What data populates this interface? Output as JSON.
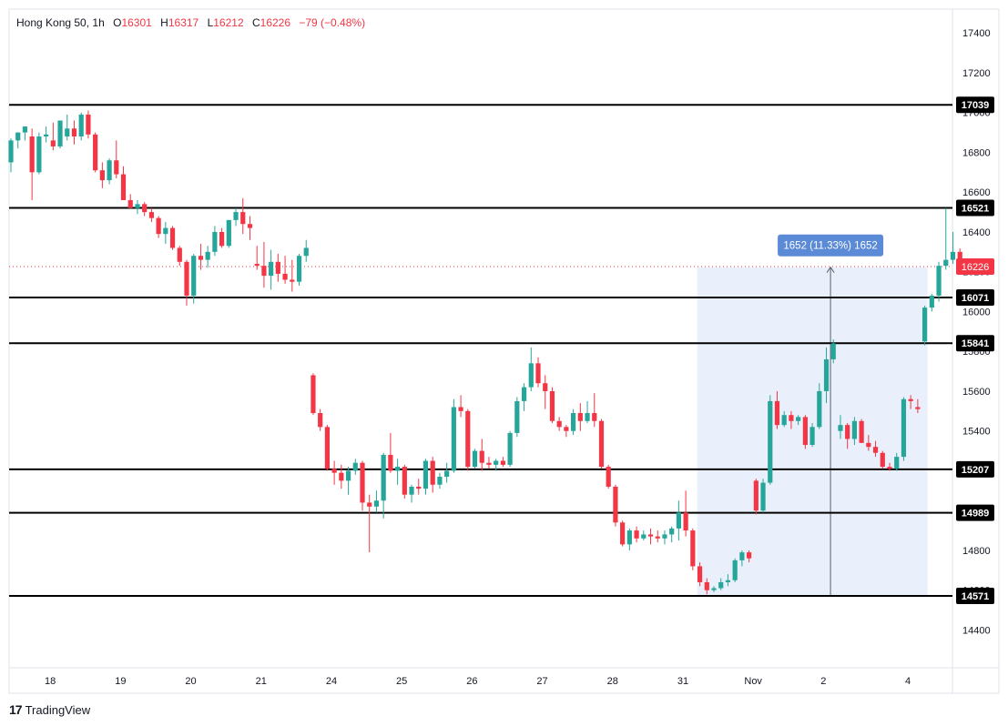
{
  "legend": {
    "symbol": "Hong Kong 50",
    "interval": "1h",
    "open_label": "O",
    "open": "16301",
    "high_label": "H",
    "high": "16317",
    "low_label": "L",
    "low": "16212",
    "close_label": "C",
    "close": "16226",
    "change": "−79 (−0.48%)"
  },
  "brand": {
    "logo": "17",
    "name": "TradingView"
  },
  "colors": {
    "up": "#26a69a",
    "down": "#f23645",
    "measure_fill": "#e8eefb",
    "measure_label": "#5b8ad6"
  },
  "chart_data": {
    "type": "candlestick",
    "title": "",
    "ylim": [
      14210,
      17520
    ],
    "y_ticks": [
      14400,
      14600,
      14800,
      15000,
      15200,
      15400,
      15600,
      15800,
      16000,
      16200,
      16400,
      16600,
      16800,
      17000,
      17200,
      17400
    ],
    "x_ticks": [
      {
        "label": "18",
        "i": 3
      },
      {
        "label": "19",
        "i": 13
      },
      {
        "label": "20",
        "i": 23
      },
      {
        "label": "21",
        "i": 33
      },
      {
        "label": "24",
        "i": 43
      },
      {
        "label": "25",
        "i": 53
      },
      {
        "label": "26",
        "i": 63
      },
      {
        "label": "27",
        "i": 73
      },
      {
        "label": "28",
        "i": 83
      },
      {
        "label": "31",
        "i": 93
      },
      {
        "label": "Nov",
        "i": 103
      },
      {
        "label": "2",
        "i": 113
      },
      {
        "label": "4",
        "i": 125
      }
    ],
    "price_levels": [
      17039,
      16521,
      16071,
      15841,
      15207,
      14989,
      14571
    ],
    "last_price": 16226,
    "measure": {
      "from_i": 98,
      "to_i": 130,
      "low": 14571,
      "high": 16223,
      "label": "1652 (11.33%) 1652"
    },
    "gaps": [
      {
        "after_i": 42,
        "i": 43
      }
    ],
    "candles": [
      [
        16750,
        16870,
        16700,
        16860
      ],
      [
        16860,
        16900,
        16820,
        16900
      ],
      [
        16900,
        16920,
        16860,
        16930
      ],
      [
        16880,
        16920,
        16560,
        16700
      ],
      [
        16700,
        16900,
        16690,
        16880
      ],
      [
        16880,
        16930,
        16850,
        16890
      ],
      [
        16860,
        16950,
        16810,
        16830
      ],
      [
        16830,
        16950,
        16820,
        16960
      ],
      [
        16880,
        16990,
        16860,
        16920
      ],
      [
        16920,
        16960,
        16840,
        16880
      ],
      [
        16880,
        17000,
        16860,
        16990
      ],
      [
        16990,
        17010,
        16870,
        16890
      ],
      [
        16890,
        16900,
        16700,
        16710
      ],
      [
        16710,
        16750,
        16620,
        16660
      ],
      [
        16660,
        16770,
        16640,
        16760
      ],
      [
        16760,
        16860,
        16670,
        16690
      ],
      [
        16690,
        16730,
        16560,
        16560
      ],
      [
        16560,
        16590,
        16520,
        16520
      ],
      [
        16520,
        16560,
        16490,
        16540
      ],
      [
        16540,
        16550,
        16480,
        16500
      ],
      [
        16500,
        16520,
        16450,
        16470
      ],
      [
        16470,
        16480,
        16370,
        16390
      ],
      [
        16390,
        16450,
        16340,
        16420
      ],
      [
        16420,
        16430,
        16310,
        16320
      ],
      [
        16320,
        16330,
        16230,
        16250
      ],
      [
        16250,
        16260,
        16030,
        16080
      ],
      [
        16080,
        16290,
        16040,
        16280
      ],
      [
        16280,
        16340,
        16210,
        16260
      ],
      [
        16260,
        16330,
        16220,
        16300
      ],
      [
        16300,
        16430,
        16280,
        16400
      ],
      [
        16400,
        16420,
        16320,
        16330
      ],
      [
        16330,
        16460,
        16320,
        16460
      ],
      [
        16460,
        16520,
        16430,
        16500
      ],
      [
        16500,
        16570,
        16390,
        16440
      ],
      [
        16440,
        16480,
        16360,
        16420
      ],
      [
        16240,
        16330,
        16210,
        16230
      ],
      [
        16230,
        16350,
        16120,
        16180
      ],
      [
        16180,
        16310,
        16110,
        16250
      ],
      [
        16250,
        16290,
        16150,
        16190
      ],
      [
        16190,
        16280,
        16140,
        16160
      ],
      [
        16160,
        16260,
        16100,
        16150
      ],
      [
        16150,
        16290,
        16130,
        16280
      ],
      [
        16280,
        16360,
        16250,
        16320
      ],
      [
        15680,
        15690,
        15480,
        15490
      ],
      [
        15490,
        15510,
        15400,
        15420
      ],
      [
        15420,
        15430,
        15200,
        15210
      ],
      [
        15210,
        15250,
        15130,
        15190
      ],
      [
        15190,
        15230,
        15110,
        15150
      ],
      [
        15150,
        15220,
        15080,
        15200
      ],
      [
        15200,
        15260,
        15180,
        15240
      ],
      [
        15240,
        15250,
        15000,
        15040
      ],
      [
        15040,
        15080,
        14790,
        15020
      ],
      [
        15020,
        15100,
        14990,
        15050
      ],
      [
        15050,
        15290,
        14960,
        15280
      ],
      [
        15280,
        15390,
        15190,
        15200
      ],
      [
        15200,
        15260,
        15130,
        15220
      ],
      [
        15220,
        15230,
        15060,
        15080
      ],
      [
        15080,
        15130,
        15040,
        15120
      ],
      [
        15120,
        15160,
        15080,
        15110
      ],
      [
        15110,
        15260,
        15080,
        15250
      ],
      [
        15250,
        15270,
        15090,
        15130
      ],
      [
        15130,
        15190,
        15110,
        15170
      ],
      [
        15170,
        15240,
        15140,
        15200
      ],
      [
        15200,
        15560,
        15190,
        15520
      ],
      [
        15520,
        15580,
        15470,
        15500
      ],
      [
        15500,
        15510,
        15200,
        15220
      ],
      [
        15220,
        15310,
        15210,
        15300
      ],
      [
        15300,
        15360,
        15200,
        15240
      ],
      [
        15240,
        15270,
        15210,
        15230
      ],
      [
        15230,
        15260,
        15200,
        15250
      ],
      [
        15250,
        15270,
        15220,
        15230
      ],
      [
        15230,
        15400,
        15220,
        15390
      ],
      [
        15390,
        15570,
        15370,
        15550
      ],
      [
        15550,
        15640,
        15500,
        15620
      ],
      [
        15620,
        15820,
        15600,
        15740
      ],
      [
        15740,
        15770,
        15620,
        15640
      ],
      [
        15640,
        15680,
        15510,
        15600
      ],
      [
        15600,
        15620,
        15440,
        15450
      ],
      [
        15450,
        15470,
        15400,
        15420
      ],
      [
        15420,
        15430,
        15370,
        15400
      ],
      [
        15400,
        15510,
        15380,
        15490
      ],
      [
        15490,
        15540,
        15400,
        15450
      ],
      [
        15450,
        15550,
        15440,
        15490
      ],
      [
        15490,
        15590,
        15420,
        15450
      ],
      [
        15450,
        15460,
        15210,
        15220
      ],
      [
        15220,
        15230,
        15110,
        15120
      ],
      [
        15120,
        15130,
        14920,
        14940
      ],
      [
        14940,
        14950,
        14820,
        14830
      ],
      [
        14830,
        14910,
        14800,
        14900
      ],
      [
        14900,
        14920,
        14840,
        14860
      ],
      [
        14860,
        14900,
        14850,
        14880
      ],
      [
        14880,
        14910,
        14830,
        14870
      ],
      [
        14870,
        14900,
        14840,
        14860
      ],
      [
        14860,
        14900,
        14830,
        14880
      ],
      [
        14880,
        14920,
        14840,
        14910
      ],
      [
        14910,
        15050,
        14850,
        14990
      ],
      [
        14990,
        15100,
        14870,
        14900
      ],
      [
        14900,
        14910,
        14700,
        14720
      ],
      [
        14720,
        14740,
        14620,
        14640
      ],
      [
        14640,
        14660,
        14580,
        14600
      ],
      [
        14600,
        14620,
        14590,
        14610
      ],
      [
        14610,
        14660,
        14600,
        14640
      ],
      [
        14640,
        14680,
        14620,
        14650
      ],
      [
        14650,
        14760,
        14640,
        14750
      ],
      [
        14750,
        14800,
        14720,
        14790
      ],
      [
        14790,
        14800,
        14740,
        14760
      ],
      [
        15150,
        15160,
        14980,
        15000
      ],
      [
        15000,
        15160,
        14990,
        15140
      ],
      [
        15140,
        15580,
        15130,
        15550
      ],
      [
        15550,
        15600,
        15410,
        15430
      ],
      [
        15430,
        15500,
        15420,
        15480
      ],
      [
        15480,
        15500,
        15410,
        15450
      ],
      [
        15450,
        15480,
        15430,
        15470
      ],
      [
        15470,
        15480,
        15310,
        15330
      ],
      [
        15330,
        15440,
        15320,
        15420
      ],
      [
        15420,
        15640,
        15410,
        15600
      ],
      [
        15600,
        15820,
        15540,
        15760
      ],
      [
        15760,
        15860,
        15740,
        15840
      ],
      [
        15400,
        15480,
        15360,
        15430
      ],
      [
        15430,
        15440,
        15310,
        15360
      ],
      [
        15360,
        15470,
        15330,
        15450
      ],
      [
        15450,
        15460,
        15340,
        15340
      ],
      [
        15340,
        15380,
        15300,
        15320
      ],
      [
        15320,
        15350,
        15270,
        15290
      ],
      [
        15290,
        15300,
        15210,
        15220
      ],
      [
        15220,
        15240,
        15200,
        15210
      ],
      [
        15210,
        15290,
        15200,
        15270
      ],
      [
        15270,
        15570,
        15250,
        15560
      ],
      [
        15560,
        15580,
        15510,
        15550
      ],
      [
        15520,
        15560,
        15490,
        15510
      ]
    ],
    "tail": [
      [
        15850,
        16030,
        15830,
        16020
      ],
      [
        16020,
        16090,
        16000,
        16080
      ],
      [
        16080,
        16250,
        16050,
        16230
      ],
      [
        16230,
        16520,
        16210,
        16260
      ],
      [
        16260,
        16400,
        16240,
        16300
      ],
      [
        16300,
        16317,
        16212,
        16226
      ]
    ]
  }
}
